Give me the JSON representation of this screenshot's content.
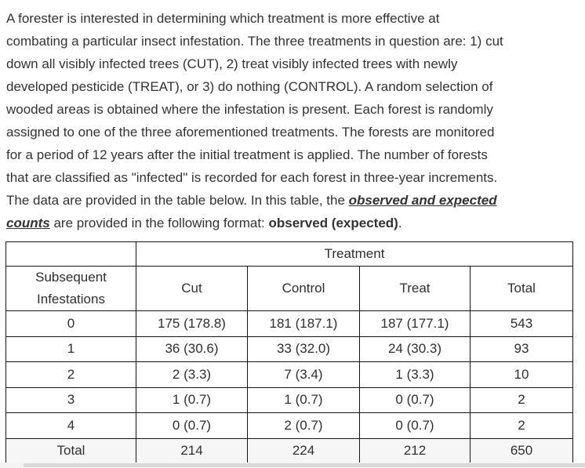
{
  "colors": {
    "text": "#333333",
    "table_border": "#141414",
    "total_row_background": "#f6f6f6",
    "scrollbar_track": "#f4f4f4",
    "scrollbar_thumb": "#d9d9d9"
  },
  "paragraph": {
    "lines": [
      {
        "segments": [
          {
            "text": "A forester is interested in determining which treatment is more effective at",
            "style": "plain"
          }
        ]
      },
      {
        "segments": [
          {
            "text": "combating a particular insect infestation. The three treatments in question are: 1) cut",
            "style": "plain"
          }
        ]
      },
      {
        "segments": [
          {
            "text": "down all visibly infected trees (CUT), 2) treat visibly infected trees with newly",
            "style": "plain"
          }
        ]
      },
      {
        "segments": [
          {
            "text": "developed pesticide (TREAT), or 3) do nothing (CONTROL). A random selection of",
            "style": "plain"
          }
        ]
      },
      {
        "segments": [
          {
            "text": "wooded areas is obtained where the infestation is present. Each forest is randomly",
            "style": "plain"
          }
        ]
      },
      {
        "segments": [
          {
            "text": "assigned to one of the three aforementioned treatments. The forests are monitored",
            "style": "plain"
          }
        ]
      },
      {
        "segments": [
          {
            "text": "for a period of 12 years after the initial treatment is applied. The number of forests",
            "style": "plain"
          }
        ]
      },
      {
        "segments": [
          {
            "text": "that are classified as \"infected\" is recorded for each forest in three-year increments.",
            "style": "plain"
          }
        ]
      },
      {
        "segments": [
          {
            "text": "The data are provided in the table below. In this table, the ",
            "style": "plain"
          },
          {
            "text": "observed and expected",
            "style": "biu"
          }
        ]
      },
      {
        "segments": [
          {
            "text": "counts",
            "style": "biu"
          },
          {
            "text": " are provided in the following format: ",
            "style": "plain"
          },
          {
            "text": "observed (expected)",
            "style": "b"
          },
          {
            "text": ".",
            "style": "plain"
          }
        ]
      }
    ]
  },
  "table": {
    "treatment_header": "Treatment",
    "row_header_label": "Subsequent Infestations",
    "columns": [
      "Cut",
      "Control",
      "Treat",
      "Total"
    ],
    "rows": [
      {
        "label": "0",
        "cells": [
          "175 (178.8)",
          "181 (187.1)",
          "187 (177.1)",
          "543"
        ]
      },
      {
        "label": "1",
        "cells": [
          "36 (30.6)",
          "33 (32.0)",
          "24 (30.3)",
          "93"
        ]
      },
      {
        "label": "2",
        "cells": [
          "2 (3.3)",
          "7 (3.4)",
          "1 (3.3)",
          "10"
        ]
      },
      {
        "label": "3",
        "cells": [
          "1 (0.7)",
          "1 (0.7)",
          "0 (0.7)",
          "2"
        ]
      },
      {
        "label": "4",
        "cells": [
          "0 (0.7)",
          "2 (0.7)",
          "0 (0.7)",
          "2"
        ]
      }
    ],
    "total_row": {
      "label": "Total",
      "cells": [
        "214",
        "224",
        "212",
        "650"
      ]
    }
  }
}
